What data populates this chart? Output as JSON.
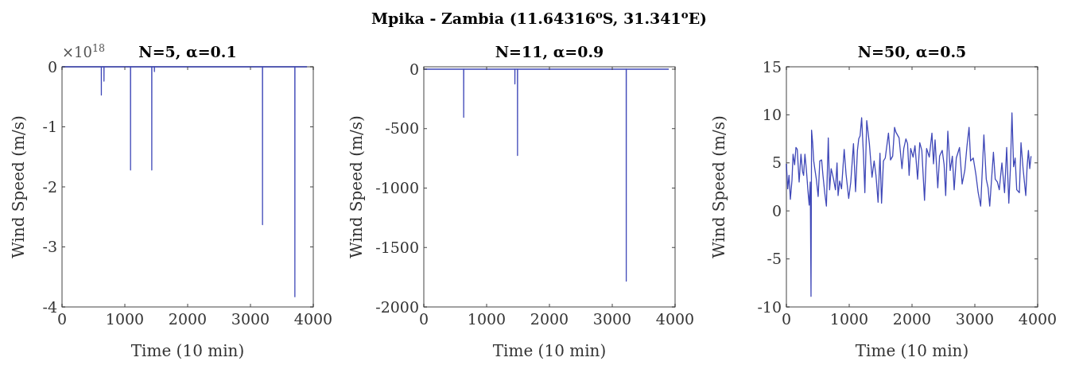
{
  "chart_data": [
    {
      "type": "line",
      "title": "N=5, α=0.1",
      "xlabel": "Time (10 min)",
      "ylabel": "Wind Speed (m/s)",
      "annotations": [
        "Mpika - Zambia (11.64316$^{o}$S, 31.341$^{o}$E)",
        "×10$^{18}$"
      ],
      "xlim": [
        0,
        4000
      ],
      "xticks": [
        0,
        1000,
        2000,
        3000,
        4000
      ],
      "ylim": [
        -4,
        0
      ],
      "yticks": [
        -4,
        -3,
        -2,
        -1,
        0
      ],
      "grid": false,
      "series": [
        {
          "color": "#3f48b8",
          "x": [
            0,
            625,
            626,
            627,
            667,
            668,
            669,
            1090,
            1091,
            1092,
            1428,
            1429,
            1430,
            1470,
            1471,
            1472,
            3191,
            3192,
            3193,
            3706,
            3707,
            3708,
            3900
          ],
          "values": [
            0,
            0,
            -0.47,
            0,
            0,
            -0.24,
            0,
            0,
            -1.72,
            0,
            0,
            -1.72,
            0,
            0,
            -0.08,
            0,
            0,
            -2.63,
            0,
            0,
            -3.83,
            0,
            0
          ]
        }
      ]
    },
    {
      "type": "line",
      "title": "N=11, α=0.9",
      "xlabel": "Time (10 min)",
      "ylabel": "Wind Speed (m/s)",
      "xlim": [
        0,
        4000
      ],
      "xticks": [
        0,
        1000,
        2000,
        3000,
        4000
      ],
      "ylim": [
        -2000,
        20
      ],
      "yticks": [
        -2000,
        -1500,
        -1000,
        -500,
        0
      ],
      "grid": false,
      "series": [
        {
          "color": "#3f48b8",
          "x": [
            0,
            634,
            635,
            636,
            1449,
            1450,
            1451,
            1491,
            1492,
            1493,
            3222,
            3223,
            3224,
            3900
          ],
          "values": [
            0,
            0,
            -405,
            0,
            0,
            -124,
            0,
            0,
            -726,
            0,
            0,
            -1783,
            0,
            0
          ]
        }
      ]
    },
    {
      "type": "line",
      "title": "N=50, α=0.5",
      "xlabel": "Time (10 min)",
      "ylabel": "Wind Speed (m/s)",
      "xlim": [
        0,
        4000
      ],
      "xticks": [
        0,
        1000,
        2000,
        3000,
        4000
      ],
      "ylim": [
        -10,
        15
      ],
      "yticks": [
        -10,
        -5,
        0,
        5,
        10,
        15
      ],
      "grid": false,
      "series": [
        {
          "color": "#3f48b8",
          "x": [
            0,
            21,
            42,
            63,
            89,
            106,
            131,
            152,
            173,
            203,
            232,
            257,
            274,
            295,
            317,
            342,
            363,
            380,
            392,
            401,
            418,
            435,
            452,
            477,
            506,
            532,
            561,
            582,
            612,
            637,
            667,
            688,
            713,
            751,
            781,
            806,
            823,
            848,
            878,
            920,
            950,
            992,
            1025,
            1068,
            1101,
            1131,
            1152,
            1173,
            1198,
            1228,
            1249,
            1279,
            1321,
            1363,
            1397,
            1426,
            1460,
            1490,
            1515,
            1545,
            1574,
            1625,
            1658,
            1692,
            1722,
            1743,
            1794,
            1840,
            1869,
            1903,
            1929,
            1954,
            1979,
            2017,
            2047,
            2089,
            2123,
            2156,
            2199,
            2232,
            2275,
            2317,
            2342,
            2367,
            2410,
            2439,
            2481,
            2511,
            2536,
            2570,
            2608,
            2642,
            2671,
            2705,
            2756,
            2798,
            2840,
            2874,
            2908,
            2933,
            2975,
            3017,
            3051,
            3093,
            3144,
            3182,
            3211,
            3237,
            3296,
            3325,
            3359,
            3389,
            3431,
            3473,
            3507,
            3541,
            3566,
            3591,
            3617,
            3642,
            3667,
            3709,
            3735,
            3768,
            3811,
            3832,
            3853,
            3874,
            3895
          ],
          "values": [
            4.9,
            2.3,
            3.7,
            1.2,
            3.2,
            5.9,
            4.8,
            6.6,
            6.4,
            3.0,
            5.9,
            4.1,
            3.7,
            5.9,
            4.4,
            2.2,
            0.6,
            3.0,
            -8.9,
            8.4,
            7.1,
            5.2,
            4.4,
            3.3,
            1.5,
            5.2,
            5.3,
            3.7,
            1.8,
            0.5,
            7.6,
            2.2,
            4.4,
            3.3,
            2.2,
            5.0,
            1.6,
            3.1,
            2.3,
            6.4,
            3.8,
            1.3,
            3.0,
            7.0,
            2.0,
            6.3,
            7.5,
            7.8,
            9.7,
            5.7,
            1.9,
            9.4,
            7.0,
            3.5,
            5.2,
            3.7,
            0.9,
            6.0,
            0.8,
            5.2,
            5.5,
            8.1,
            5.3,
            5.7,
            8.7,
            8.2,
            7.6,
            4.4,
            6.5,
            7.5,
            7.0,
            3.7,
            6.5,
            5.6,
            6.8,
            3.3,
            7.1,
            6.3,
            1.1,
            6.5,
            5.6,
            8.1,
            4.9,
            7.4,
            2.4,
            5.7,
            6.3,
            4.8,
            1.6,
            8.3,
            4.2,
            5.7,
            2.2,
            5.5,
            6.6,
            2.8,
            4.2,
            6.7,
            8.7,
            5.2,
            5.5,
            3.8,
            2.0,
            0.5,
            7.9,
            3.3,
            2.4,
            0.5,
            6.1,
            3.3,
            3.0,
            2.2,
            5.0,
            1.9,
            6.6,
            0.8,
            4.4,
            10.2,
            4.6,
            5.5,
            2.2,
            1.9,
            7.1,
            4.4,
            1.6,
            4.6,
            6.3,
            4.4,
            5.7
          ]
        }
      ]
    }
  ]
}
